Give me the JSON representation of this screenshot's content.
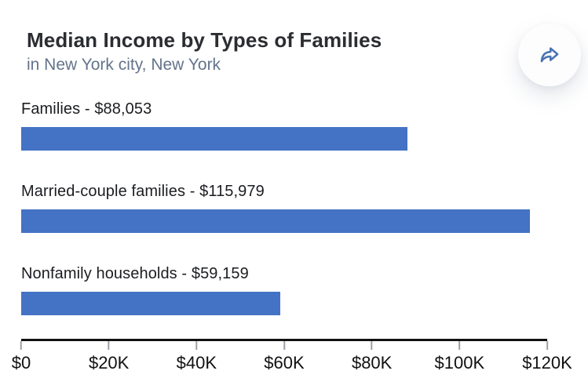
{
  "page": {
    "background": "#ffffff"
  },
  "header": {
    "title": "Median Income by Types of Families",
    "subtitle": "in New York city, New York",
    "share_icon": "share-forward-arrow"
  },
  "chart_data": {
    "type": "bar",
    "orientation": "horizontal",
    "title": "Median Income by Types of Families",
    "subtitle": "in New York city, New York",
    "categories": [
      "Families",
      "Married-couple families",
      "Nonfamily households"
    ],
    "values": [
      88053,
      115979,
      59159
    ],
    "bar_labels": [
      "Families - $88,053",
      "Married-couple families - $115,979",
      "Nonfamily households - $59,159"
    ],
    "xlim": [
      0,
      120000
    ],
    "x_ticks": [
      "$0",
      "$20K",
      "$40K",
      "$60K",
      "$80K",
      "$100K",
      "$120K"
    ],
    "xlabel": "",
    "ylabel": "",
    "grid": false,
    "legend": false,
    "bar_color": "#4472c4"
  },
  "colors": {
    "title": "#2b2d31",
    "subtitle": "#64748b",
    "bar": "#4472c4",
    "axis_line": "#111111",
    "tick_mark": "#9aa0a6",
    "tick_label": "#111111",
    "share_icon": "#4a74b4"
  }
}
